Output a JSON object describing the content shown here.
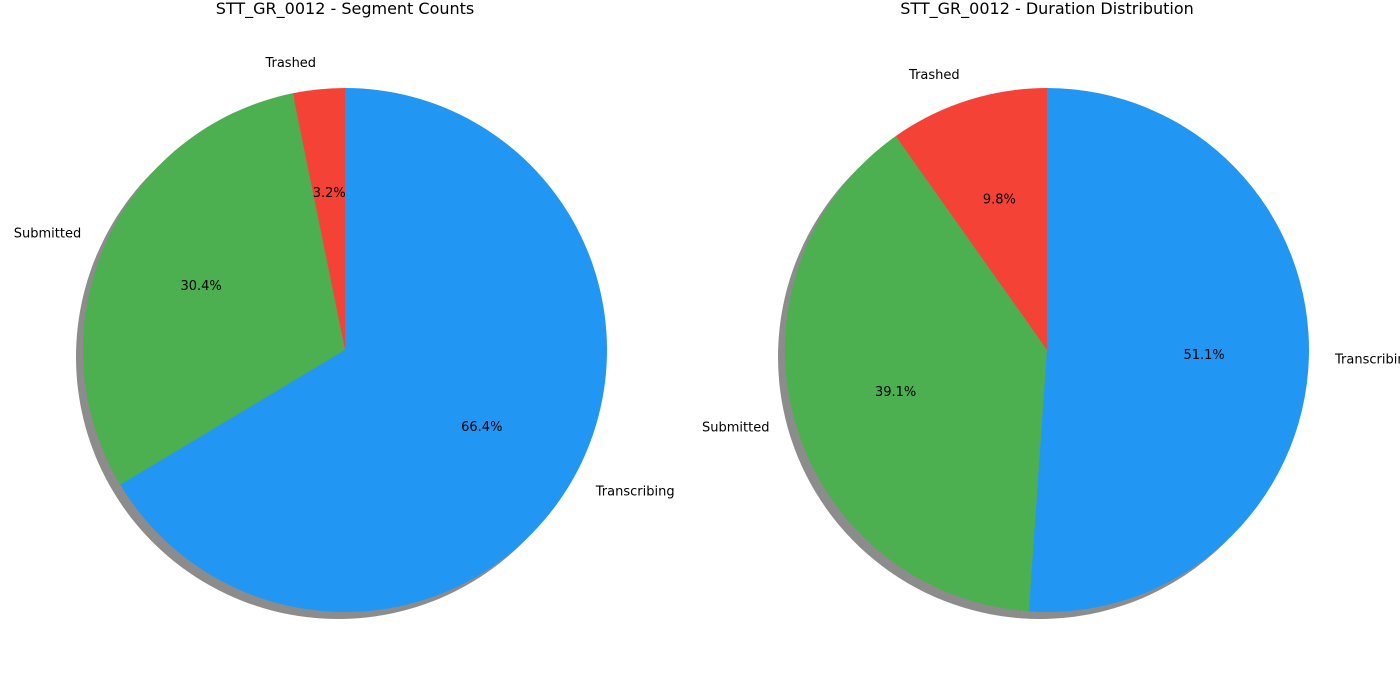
{
  "chart_data": [
    {
      "type": "pie",
      "title": "STT_GR_0012 - Segment Counts",
      "start_angle_deg": 90,
      "direction": "counterclockwise",
      "shadow": true,
      "slices": [
        {
          "label": "Trashed",
          "value": 3.2,
          "pct_label": "3.2%",
          "color": "#F44336"
        },
        {
          "label": "Submitted",
          "value": 30.4,
          "pct_label": "30.4%",
          "color": "#4CAF50"
        },
        {
          "label": "Transcribing",
          "value": 66.4,
          "pct_label": "66.4%",
          "color": "#2196F3"
        }
      ]
    },
    {
      "type": "pie",
      "title": "STT_GR_0012 - Duration Distribution",
      "start_angle_deg": 90,
      "direction": "counterclockwise",
      "shadow": true,
      "slices": [
        {
          "label": "Trashed",
          "value": 9.8,
          "pct_label": "9.8%",
          "color": "#F44336"
        },
        {
          "label": "Submitted",
          "value": 39.1,
          "pct_label": "39.1%",
          "color": "#4CAF50"
        },
        {
          "label": "Transcribing",
          "value": 51.1,
          "pct_label": "51.1%",
          "color": "#2196F3"
        }
      ]
    }
  ]
}
